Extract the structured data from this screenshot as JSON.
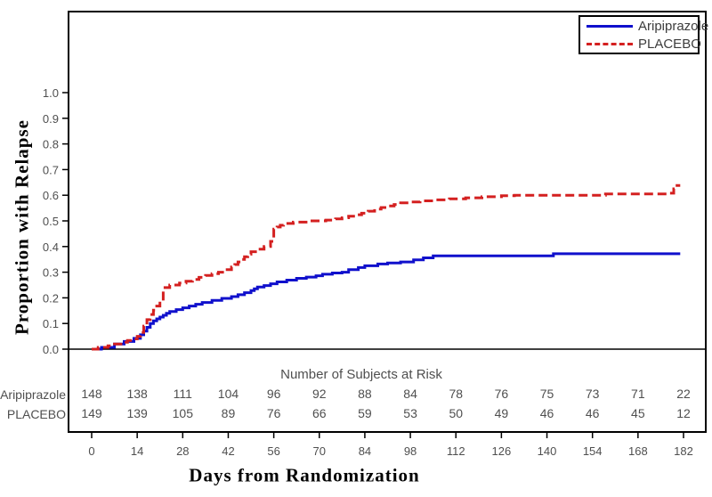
{
  "legend": {
    "items": [
      {
        "label": "Aripiprazole",
        "line_style": "solid"
      },
      {
        "label": "PLACEBO",
        "line_style": "dashed"
      }
    ]
  },
  "chart_data": {
    "type": "line",
    "subtype": "kaplan-meier-step",
    "title": "",
    "xlabel": "Days from Randomization",
    "ylabel": "Proportion with Relapse",
    "grid": false,
    "legend_position": "top-right",
    "xlim": [
      -7,
      189
    ],
    "ylim": [
      0,
      1.05
    ],
    "xticks": [
      0,
      14,
      28,
      42,
      56,
      70,
      84,
      98,
      112,
      126,
      140,
      154,
      168,
      182
    ],
    "yticks": [
      "0.0",
      "0.1",
      "0.2",
      "0.3",
      "0.4",
      "0.5",
      "0.6",
      "0.7",
      "0.8",
      "0.9",
      "1.0"
    ],
    "colors": {
      "aripiprazole": "#1010cc",
      "placebo": "#d42020",
      "axis": "#000000",
      "tick_text": "#4f4f4f"
    },
    "series": [
      {
        "name": "Aripiprazole",
        "color": "#1010cc",
        "line_style": "solid",
        "points": [
          [
            0,
            0
          ],
          [
            3,
            0.007
          ],
          [
            7,
            0.02
          ],
          [
            10,
            0.03
          ],
          [
            13,
            0.042
          ],
          [
            15,
            0.056
          ],
          [
            16,
            0.07
          ],
          [
            17,
            0.085
          ],
          [
            18,
            0.1
          ],
          [
            19,
            0.11
          ],
          [
            20,
            0.118
          ],
          [
            21,
            0.125
          ],
          [
            22,
            0.132
          ],
          [
            23,
            0.14
          ],
          [
            24,
            0.147
          ],
          [
            26,
            0.154
          ],
          [
            28,
            0.161
          ],
          [
            30,
            0.168
          ],
          [
            32,
            0.175
          ],
          [
            34,
            0.182
          ],
          [
            37,
            0.19
          ],
          [
            40,
            0.198
          ],
          [
            43,
            0.205
          ],
          [
            45,
            0.212
          ],
          [
            47,
            0.22
          ],
          [
            49,
            0.228
          ],
          [
            50,
            0.235
          ],
          [
            51,
            0.242
          ],
          [
            53,
            0.248
          ],
          [
            55,
            0.255
          ],
          [
            57,
            0.262
          ],
          [
            60,
            0.269
          ],
          [
            63,
            0.276
          ],
          [
            66,
            0.281
          ],
          [
            69,
            0.286
          ],
          [
            71,
            0.292
          ],
          [
            74,
            0.297
          ],
          [
            77,
            0.3
          ],
          [
            79,
            0.31
          ],
          [
            82,
            0.318
          ],
          [
            84,
            0.325
          ],
          [
            88,
            0.332
          ],
          [
            91,
            0.336
          ],
          [
            95,
            0.34
          ],
          [
            99,
            0.348
          ],
          [
            102,
            0.356
          ],
          [
            105,
            0.364
          ],
          [
            142,
            0.372
          ],
          [
            181,
            0.372
          ]
        ]
      },
      {
        "name": "PLACEBO",
        "color": "#d42020",
        "line_style": "dashed",
        "points": [
          [
            0,
            0
          ],
          [
            2,
            0.007
          ],
          [
            5,
            0.013
          ],
          [
            7,
            0.02
          ],
          [
            9,
            0.027
          ],
          [
            11,
            0.034
          ],
          [
            13,
            0.04
          ],
          [
            14,
            0.05
          ],
          [
            15,
            0.065
          ],
          [
            16,
            0.09
          ],
          [
            17,
            0.115
          ],
          [
            18,
            0.135
          ],
          [
            19,
            0.152
          ],
          [
            20,
            0.168
          ],
          [
            21,
            0.185
          ],
          [
            22,
            0.24
          ],
          [
            24,
            0.25
          ],
          [
            27,
            0.258
          ],
          [
            29,
            0.265
          ],
          [
            31,
            0.272
          ],
          [
            33,
            0.28
          ],
          [
            35,
            0.287
          ],
          [
            37,
            0.294
          ],
          [
            39,
            0.3
          ],
          [
            41,
            0.31
          ],
          [
            43,
            0.32
          ],
          [
            44,
            0.33
          ],
          [
            45,
            0.34
          ],
          [
            46,
            0.35
          ],
          [
            47,
            0.36
          ],
          [
            48,
            0.37
          ],
          [
            49,
            0.38
          ],
          [
            51,
            0.39
          ],
          [
            53,
            0.4
          ],
          [
            55,
            0.42
          ],
          [
            56,
            0.468
          ],
          [
            57,
            0.476
          ],
          [
            58,
            0.483
          ],
          [
            59,
            0.49
          ],
          [
            62,
            0.495
          ],
          [
            67,
            0.5
          ],
          [
            72,
            0.503
          ],
          [
            75,
            0.508
          ],
          [
            77,
            0.512
          ],
          [
            79,
            0.518
          ],
          [
            81,
            0.524
          ],
          [
            83,
            0.53
          ],
          [
            85,
            0.538
          ],
          [
            87,
            0.546
          ],
          [
            89,
            0.552
          ],
          [
            91,
            0.558
          ],
          [
            93,
            0.564
          ],
          [
            95,
            0.57
          ],
          [
            98,
            0.574
          ],
          [
            101,
            0.578
          ],
          [
            105,
            0.582
          ],
          [
            110,
            0.586
          ],
          [
            115,
            0.59
          ],
          [
            120,
            0.594
          ],
          [
            126,
            0.598
          ],
          [
            130,
            0.6
          ],
          [
            158,
            0.605
          ],
          [
            177,
            0.608
          ],
          [
            179,
            0.625
          ],
          [
            180,
            0.638
          ],
          [
            181,
            0.638
          ]
        ]
      }
    ],
    "at_risk": {
      "title": "Number of Subjects at Risk",
      "rows": [
        {
          "label": "Aripiprazole",
          "values": [
            148,
            138,
            111,
            104,
            96,
            92,
            88,
            84,
            78,
            76,
            75,
            73,
            71,
            22
          ]
        },
        {
          "label": "PLACEBO",
          "values": [
            149,
            139,
            105,
            89,
            76,
            66,
            59,
            53,
            50,
            49,
            46,
            46,
            45,
            12
          ]
        }
      ]
    }
  }
}
